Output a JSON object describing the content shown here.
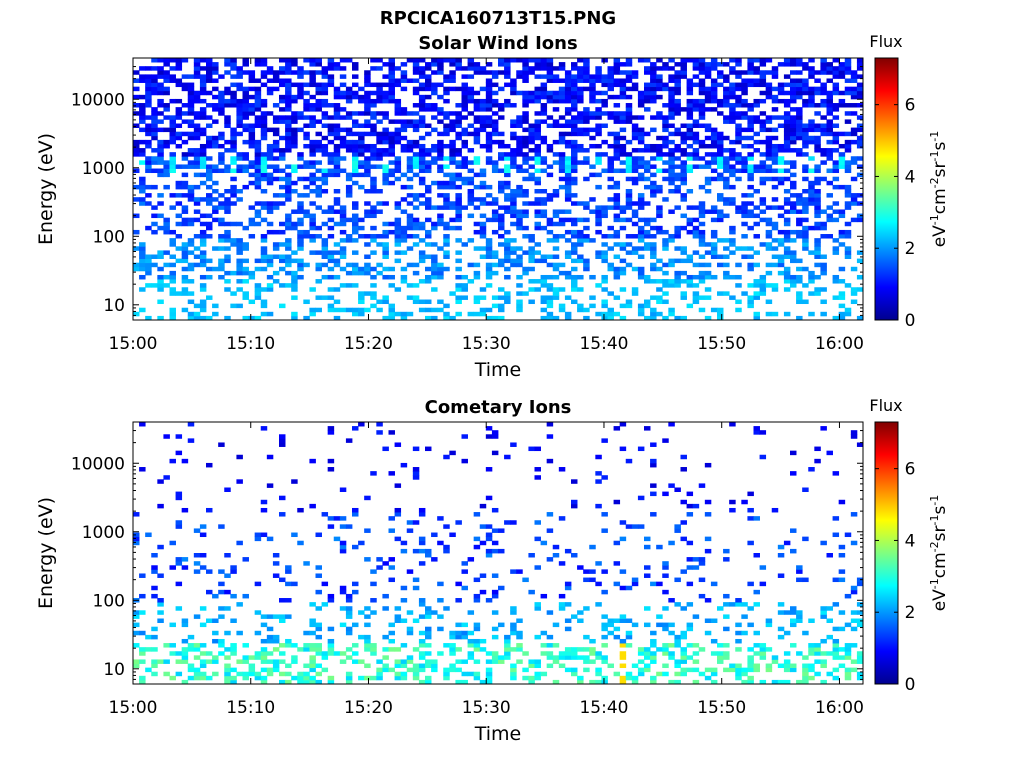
{
  "figure_title": "RPCICA160713T15.PNG",
  "chart_data": [
    {
      "type": "heatmap",
      "title": "Solar Wind Ions",
      "xlabel": "Time",
      "ylabel": "Energy (eV)",
      "x_ticks": [
        "15:00",
        "15:10",
        "15:20",
        "15:30",
        "15:40",
        "15:50",
        "16:00"
      ],
      "x_range": [
        "15:00",
        "16:02"
      ],
      "y_scale": "log",
      "y_ticks": [
        10,
        100,
        1000,
        10000
      ],
      "y_tick_labels": [
        "10",
        "100",
        "1000",
        "10000"
      ],
      "ylim": [
        6,
        40000
      ],
      "colorbar": {
        "label": "Flux",
        "unit_label": "eV-1cm-2sr-1s-1",
        "ticks": [
          0,
          2,
          4,
          6
        ],
        "tick_labels": [
          "0",
          "2",
          "4",
          "6"
        ],
        "range": [
          0,
          7.3
        ],
        "colormap": "jet"
      },
      "description_values": {
        "above_1000_eV_typical": 0.8,
        "near_1200_eV_peak": 2.6,
        "100_to_1000_eV": 1.4,
        "below_30_eV": 2.2
      }
    },
    {
      "type": "heatmap",
      "title": "Cometary Ions",
      "xlabel": "Time",
      "ylabel": "Energy (eV)",
      "x_ticks": [
        "15:00",
        "15:10",
        "15:20",
        "15:30",
        "15:40",
        "15:50",
        "16:00"
      ],
      "x_range": [
        "15:00",
        "16:02"
      ],
      "y_scale": "log",
      "y_ticks": [
        10,
        100,
        1000,
        10000
      ],
      "y_tick_labels": [
        "10",
        "100",
        "1000",
        "10000"
      ],
      "ylim": [
        6,
        40000
      ],
      "colorbar": {
        "label": "Flux",
        "unit_label": "eV-1cm-2sr-1s-1",
        "ticks": [
          0,
          2,
          4,
          6
        ],
        "tick_labels": [
          "0",
          "2",
          "4",
          "6"
        ],
        "range": [
          0,
          7.3
        ],
        "colormap": "jet"
      },
      "description_values": {
        "sparse_high_energy": 1.0,
        "near_1200_eV_peak": 1.5,
        "below_30_eV": 2.8,
        "max_near_15_41": 4.8
      }
    }
  ]
}
